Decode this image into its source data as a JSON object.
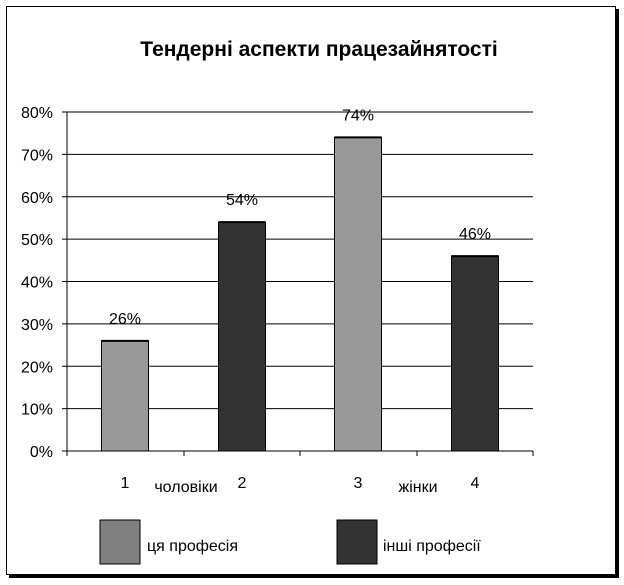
{
  "chart_data": {
    "type": "bar",
    "title": "Тендерні аспекти працезайнятості",
    "categories": [
      "1",
      "2",
      "3",
      "4"
    ],
    "group_labels": [
      "чоловіки",
      "жінки"
    ],
    "values": [
      0.26,
      0.54,
      0.74,
      0.46
    ],
    "data_labels": [
      "26%",
      "54%",
      "74%",
      "46%"
    ],
    "bar_series": [
      0,
      1,
      0,
      1
    ],
    "series": [
      {
        "name": "ця професія",
        "color": "#999999"
      },
      {
        "name": "інші професії",
        "color": "#333333"
      }
    ],
    "legend_colors": [
      "#808080",
      "#333333"
    ],
    "y_ticks": [
      "0%",
      "10%",
      "20%",
      "30%",
      "40%",
      "50%",
      "60%",
      "70%",
      "80%"
    ],
    "ylim": [
      0,
      0.8
    ],
    "grid": true,
    "legend_position": "bottom"
  }
}
